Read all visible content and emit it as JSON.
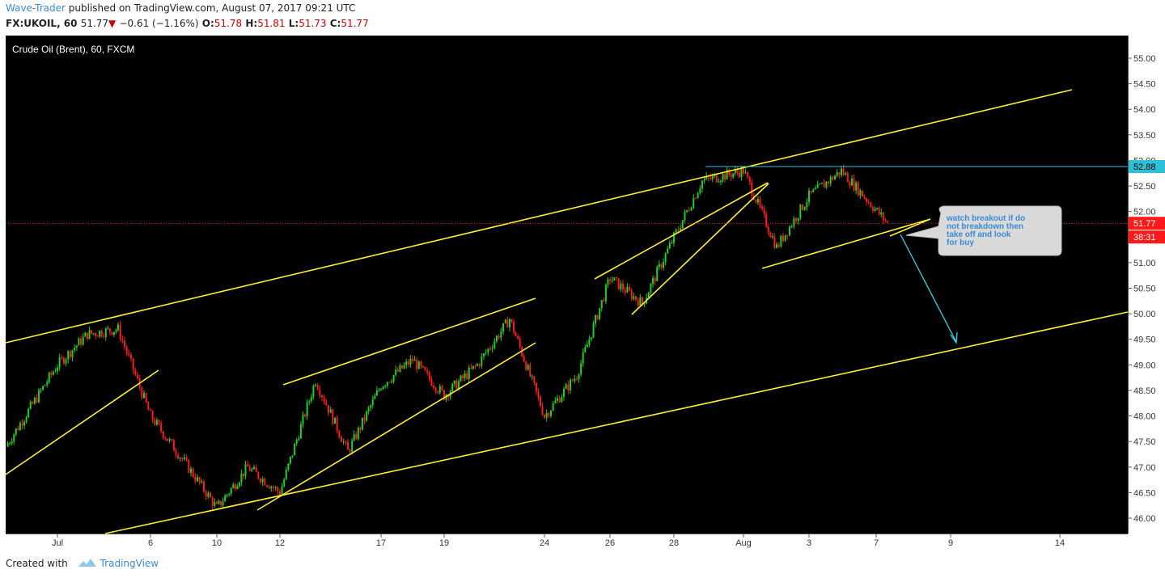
{
  "header": {
    "author": "Wave-Trader",
    "published_text": " published on TradingView.com, August 07, 2017 09:21 UTC",
    "symbol": "FX:UKOIL, 60",
    "last": "51.77",
    "change_arrow": "▼",
    "change": "−0.61 (−1.16%)",
    "o_label": "O:",
    "o_value": "51.78",
    "h_label": "H:",
    "h_value": "51.81",
    "l_label": "L:",
    "l_value": "51.73",
    "c_label": "C:",
    "c_value": "51.77"
  },
  "footer": {
    "created_with": "Created with",
    "brand": "TradingView"
  },
  "chart_data": {
    "type": "candlestick",
    "title": "Crude Oil (Brent), 60, FXCM",
    "ylim": [
      45.8,
      55.4
    ],
    "y_ticks": [
      "46.00",
      "46.50",
      "47.00",
      "47.50",
      "48.00",
      "48.50",
      "49.00",
      "49.50",
      "50.00",
      "50.50",
      "51.00",
      "51.50",
      "52.00",
      "52.50",
      "53.00",
      "53.50",
      "54.00",
      "54.50",
      "55.00"
    ],
    "x_ticks": [
      "Jul",
      "6",
      "10",
      "12",
      "17",
      "19",
      "24",
      "26",
      "28",
      "Aug",
      "3",
      "7",
      "9",
      "14"
    ],
    "price_path": [
      [
        "Jun 30",
        47.4
      ],
      [
        "Jul 3",
        49.0
      ],
      [
        "Jul 4",
        49.6
      ],
      [
        "Jul 5",
        49.7
      ],
      [
        "Jul 6",
        48.0
      ],
      [
        "Jul 7",
        47.1
      ],
      [
        "Jul 10",
        46.2
      ],
      [
        "Jul 11",
        47.0
      ],
      [
        "Jul 12",
        46.5
      ],
      [
        "Jul 13",
        48.7
      ],
      [
        "Jul 14",
        47.3
      ],
      [
        "Jul 17",
        48.6
      ],
      [
        "Jul 18",
        49.1
      ],
      [
        "Jul 19",
        48.4
      ],
      [
        "Jul 20",
        49.0
      ],
      [
        "Jul 21",
        49.9
      ],
      [
        "Jul 24",
        48.0
      ],
      [
        "Jul 25",
        48.8
      ],
      [
        "Jul 26",
        50.7
      ],
      [
        "Jul 27",
        50.2
      ],
      [
        "Jul 28",
        51.5
      ],
      [
        "Jul 31",
        52.6
      ],
      [
        "Aug 1",
        52.8
      ],
      [
        "Aug 2",
        51.3
      ],
      [
        "Aug 3",
        52.3
      ],
      [
        "Aug 4",
        52.8
      ],
      [
        "Aug 7",
        51.77
      ]
    ],
    "current_price": "51.77",
    "current_price_color": "#ff1a1a",
    "countdown_label": "38:31",
    "resistance_level": "52.88",
    "resistance_color": "#2fbfd6",
    "trendline_color": "#ffee33",
    "up_color": "#1fd11f",
    "down_color": "#ff1a1a",
    "annotation": "watch breakout if do not breakdown then take off and look for buy",
    "annotation_color": "#3a8bd8",
    "arrow_color": "#2fd6ea"
  }
}
